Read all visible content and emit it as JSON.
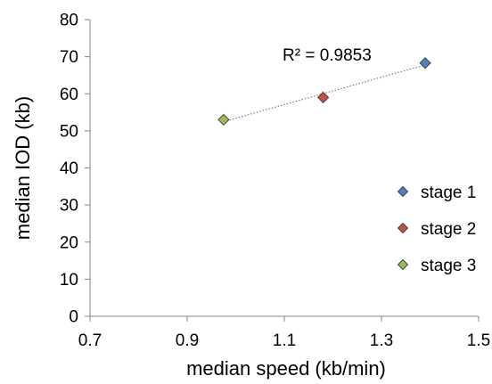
{
  "chart_data": {
    "type": "scatter",
    "xlabel": "median speed (kb/min)",
    "ylabel": "median IOD (kb)",
    "xlim": [
      0.7,
      1.5
    ],
    "ylim": [
      0,
      80
    ],
    "xticks": [
      "0.7",
      "0.9",
      "1.1",
      "1.3",
      "1.5"
    ],
    "yticks": [
      "0",
      "10",
      "20",
      "30",
      "40",
      "50",
      "60",
      "70",
      "80"
    ],
    "grid": false,
    "legend_position": "right",
    "series": [
      {
        "name": "stage 1",
        "color": "#4f81bd",
        "marker": "diamond",
        "points": [
          {
            "x": 1.39,
            "y": 68.3
          }
        ]
      },
      {
        "name": "stage 2",
        "color": "#c0504d",
        "marker": "diamond",
        "points": [
          {
            "x": 1.18,
            "y": 59.0
          }
        ]
      },
      {
        "name": "stage 3",
        "color": "#9bbb59",
        "marker": "diamond",
        "points": [
          {
            "x": 0.975,
            "y": 53.0
          }
        ]
      }
    ],
    "trendline": {
      "type": "linear",
      "style": "dotted",
      "color": "#7f7f7f",
      "x_range": [
        0.975,
        1.39
      ],
      "r_squared_label": "R² = 0.9853"
    }
  }
}
